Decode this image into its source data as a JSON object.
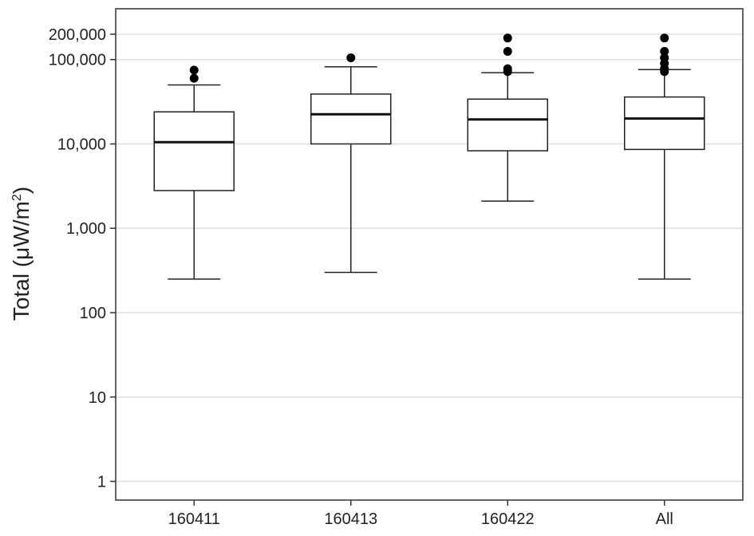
{
  "chart_data": {
    "type": "box",
    "ylabel": "Total (μW/m",
    "ylabel_superscript": "2",
    "ylabel_close": ")",
    "y_scale": "log",
    "ylim": [
      0.6,
      400000
    ],
    "y_ticks": [
      1,
      10,
      100,
      1000,
      10000,
      100000,
      200000
    ],
    "y_tick_labels": [
      "1",
      "10",
      "100",
      "1,000",
      "10,000",
      "100,000",
      "200,000"
    ],
    "grid": "horizontal",
    "categories": [
      "160411",
      "160413",
      "160422",
      "All"
    ],
    "boxes": [
      {
        "category": "160411",
        "whisker_low": 250,
        "q1": 2800,
        "median": 10500,
        "q3": 24000,
        "whisker_high": 50000,
        "outliers": [
          60000,
          75000
        ]
      },
      {
        "category": "160413",
        "whisker_low": 300,
        "q1": 10000,
        "median": 22500,
        "q3": 39000,
        "whisker_high": 82000,
        "outliers": [
          105000
        ]
      },
      {
        "category": "160422",
        "whisker_low": 2100,
        "q1": 8300,
        "median": 19500,
        "q3": 34000,
        "whisker_high": 70000,
        "outliers": [
          72000,
          78000,
          125000,
          180000
        ]
      },
      {
        "category": "All",
        "whisker_low": 250,
        "q1": 8600,
        "median": 20000,
        "q3": 36000,
        "whisker_high": 76000,
        "outliers": [
          72000,
          78000,
          90000,
          105000,
          125000,
          180000
        ]
      }
    ]
  }
}
